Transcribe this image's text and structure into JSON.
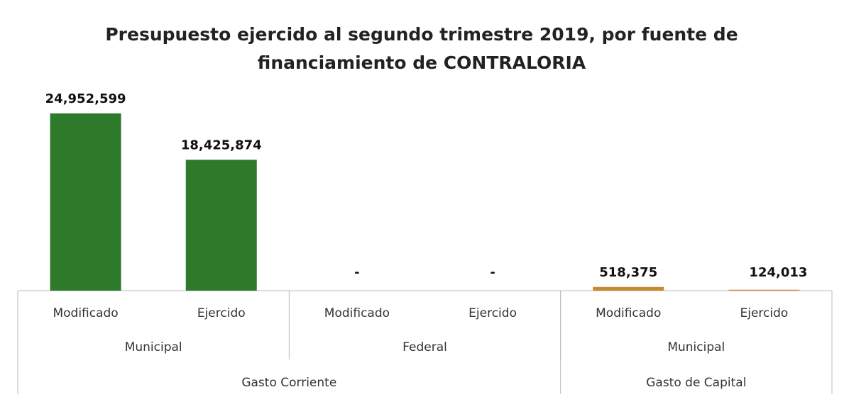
{
  "chart_data": {
    "type": "bar",
    "title": [
      "Presupuesto ejercido al segundo trimestre 2019, por fuente de",
      "financiamiento de CONTRALORIA"
    ],
    "categories": [
      "Modificado",
      "Ejercido",
      "Modificado",
      "Ejercido",
      "Modificado",
      "Ejercido"
    ],
    "groups": [
      {
        "label": "Municipal",
        "span": 2
      },
      {
        "label": "Federal",
        "span": 2
      },
      {
        "label": "Municipal",
        "span": 2
      }
    ],
    "supergroups": [
      {
        "label": "Gasto Corriente",
        "span": 4
      },
      {
        "label": "Gasto de Capital",
        "span": 2
      }
    ],
    "values": [
      24952599,
      18425874,
      0,
      0,
      518375,
      124013
    ],
    "value_labels": [
      "24,952,599",
      "18,425,874",
      "-",
      "-",
      "518,375",
      "124,013"
    ],
    "colors": [
      "#2e7a2b",
      "#2e7a2b",
      "#2e7a2b",
      "#2e7a2b",
      "#c98a2e",
      "#c98a2e"
    ]
  }
}
